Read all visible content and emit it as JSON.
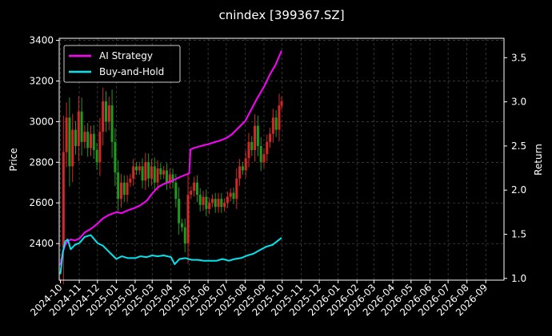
{
  "chart_data": {
    "type": "line",
    "title": "cnindex [399367.SZ]",
    "ylabel_left": "Price",
    "ylabel_right": "Return",
    "grid": true,
    "legend_position": "top-left",
    "colors": {
      "background": "#000000",
      "ai": "#ff00ff",
      "bh": "#00e5ee",
      "candle_up": "#d62728",
      "candle_down": "#1e9a1e",
      "grid": "#555555"
    },
    "y_left": {
      "min": 2220,
      "max": 3410,
      "ticks": [
        2400,
        2600,
        2800,
        3000,
        3200,
        3400
      ]
    },
    "y_right": {
      "min": 0.98,
      "max": 3.72,
      "ticks": [
        "1.0",
        "1.5",
        "2.0",
        "2.5",
        "3.0",
        "3.5"
      ]
    },
    "x_ticks": [
      "2024-10",
      "2024-11",
      "2024-12",
      "2025-01",
      "2025-02",
      "2025-03",
      "2025-04",
      "2025-05",
      "2025-06",
      "2025-07",
      "2025-08",
      "2025-09",
      "2025-10",
      "2025-11",
      "2025-12",
      "2026-01",
      "2026-02",
      "2026-03",
      "2026-04",
      "2026-05",
      "2026-06",
      "2026-07",
      "2026-08",
      "2026-09"
    ],
    "series": [
      {
        "name": "AI Strategy",
        "axis": "right",
        "x": [
          "2024-10-01",
          "2024-10-05",
          "2024-10-09",
          "2024-10-13",
          "2024-10-18",
          "2024-10-25",
          "2024-11-01",
          "2024-11-10",
          "2024-11-20",
          "2024-12-01",
          "2024-12-10",
          "2024-12-20",
          "2025-01-01",
          "2025-01-10",
          "2025-01-20",
          "2025-02-01",
          "2025-02-10",
          "2025-02-20",
          "2025-03-01",
          "2025-03-10",
          "2025-03-20",
          "2025-04-01",
          "2025-04-10",
          "2025-04-20",
          "2025-05-01",
          "2025-05-03",
          "2025-05-10",
          "2025-05-20",
          "2025-06-01",
          "2025-06-10",
          "2025-06-20",
          "2025-07-01",
          "2025-07-10",
          "2025-07-20",
          "2025-08-01",
          "2025-08-10",
          "2025-08-20",
          "2025-09-01",
          "2025-09-10",
          "2025-09-20",
          "2025-09-30"
        ],
        "values": [
          1.15,
          1.3,
          1.38,
          1.42,
          1.44,
          1.43,
          1.45,
          1.52,
          1.56,
          1.62,
          1.68,
          1.72,
          1.75,
          1.74,
          1.77,
          1.8,
          1.83,
          1.88,
          1.96,
          2.03,
          2.07,
          2.1,
          2.13,
          2.16,
          2.19,
          2.46,
          2.48,
          2.5,
          2.52,
          2.54,
          2.56,
          2.59,
          2.63,
          2.7,
          2.78,
          2.9,
          3.03,
          3.17,
          3.3,
          3.42,
          3.58
        ]
      },
      {
        "name": "Buy-and-Hold",
        "axis": "right",
        "x": [
          "2024-10-01",
          "2024-10-05",
          "2024-10-09",
          "2024-10-13",
          "2024-10-18",
          "2024-10-25",
          "2024-11-01",
          "2024-11-10",
          "2024-11-20",
          "2024-12-01",
          "2024-12-10",
          "2024-12-20",
          "2025-01-01",
          "2025-01-10",
          "2025-01-20",
          "2025-02-01",
          "2025-02-10",
          "2025-02-20",
          "2025-03-01",
          "2025-03-10",
          "2025-03-20",
          "2025-04-01",
          "2025-04-07",
          "2025-04-15",
          "2025-04-25",
          "2025-05-05",
          "2025-05-15",
          "2025-05-25",
          "2025-06-05",
          "2025-06-15",
          "2025-06-25",
          "2025-07-05",
          "2025-07-15",
          "2025-07-25",
          "2025-08-05",
          "2025-08-15",
          "2025-08-25",
          "2025-09-05",
          "2025-09-15",
          "2025-09-30"
        ],
        "values": [
          1.05,
          1.3,
          1.42,
          1.44,
          1.33,
          1.38,
          1.4,
          1.47,
          1.49,
          1.4,
          1.37,
          1.3,
          1.22,
          1.25,
          1.23,
          1.23,
          1.25,
          1.24,
          1.26,
          1.25,
          1.26,
          1.24,
          1.16,
          1.22,
          1.23,
          1.21,
          1.21,
          1.2,
          1.2,
          1.2,
          1.22,
          1.2,
          1.22,
          1.23,
          1.26,
          1.28,
          1.32,
          1.36,
          1.38,
          1.46
        ]
      }
    ],
    "candles": {
      "axis": "left",
      "x": [
        "2024-10-01",
        "2024-10-06",
        "2024-10-11",
        "2024-10-16",
        "2024-10-21",
        "2024-10-26",
        "2024-10-31",
        "2024-11-05",
        "2024-11-10",
        "2024-11-15",
        "2024-11-20",
        "2024-11-25",
        "2024-11-30",
        "2024-12-05",
        "2024-12-10",
        "2024-12-15",
        "2024-12-20",
        "2024-12-25",
        "2024-12-30",
        "2025-01-04",
        "2025-01-09",
        "2025-01-14",
        "2025-01-19",
        "2025-01-24",
        "2025-01-29",
        "2025-02-03",
        "2025-02-08",
        "2025-02-13",
        "2025-02-18",
        "2025-02-23",
        "2025-02-28",
        "2025-03-05",
        "2025-03-10",
        "2025-03-15",
        "2025-03-20",
        "2025-03-25",
        "2025-03-30",
        "2025-04-04",
        "2025-04-09",
        "2025-04-14",
        "2025-04-19",
        "2025-04-24",
        "2025-04-29",
        "2025-05-04",
        "2025-05-09",
        "2025-05-14",
        "2025-05-19",
        "2025-05-24",
        "2025-05-29",
        "2025-06-03",
        "2025-06-08",
        "2025-06-13",
        "2025-06-18",
        "2025-06-23",
        "2025-06-28",
        "2025-07-03",
        "2025-07-08",
        "2025-07-13",
        "2025-07-18",
        "2025-07-23",
        "2025-07-28",
        "2025-08-02",
        "2025-08-07",
        "2025-08-12",
        "2025-08-17",
        "2025-08-22",
        "2025-08-27",
        "2025-09-01",
        "2025-09-06",
        "2025-09-11",
        "2025-09-16",
        "2025-09-21",
        "2025-09-26",
        "2025-09-30"
      ],
      "close": [
        2380,
        2850,
        3020,
        2780,
        2960,
        2880,
        3050,
        2900,
        2950,
        2870,
        2940,
        2860,
        2800,
        2950,
        3100,
        3000,
        3080,
        2900,
        2750,
        2620,
        2700,
        2640,
        2700,
        2720,
        2780,
        2760,
        2780,
        2710,
        2800,
        2720,
        2780,
        2700,
        2770,
        2740,
        2760,
        2700,
        2740,
        2700,
        2620,
        2500,
        2480,
        2400,
        2640,
        2660,
        2700,
        2640,
        2590,
        2630,
        2570,
        2600,
        2620,
        2580,
        2620,
        2580,
        2600,
        2630,
        2650,
        2620,
        2720,
        2780,
        2760,
        2820,
        2900,
        2860,
        2980,
        2880,
        2800,
        2840,
        2900,
        2940,
        3020,
        2960,
        3080,
        3100
      ]
    }
  }
}
